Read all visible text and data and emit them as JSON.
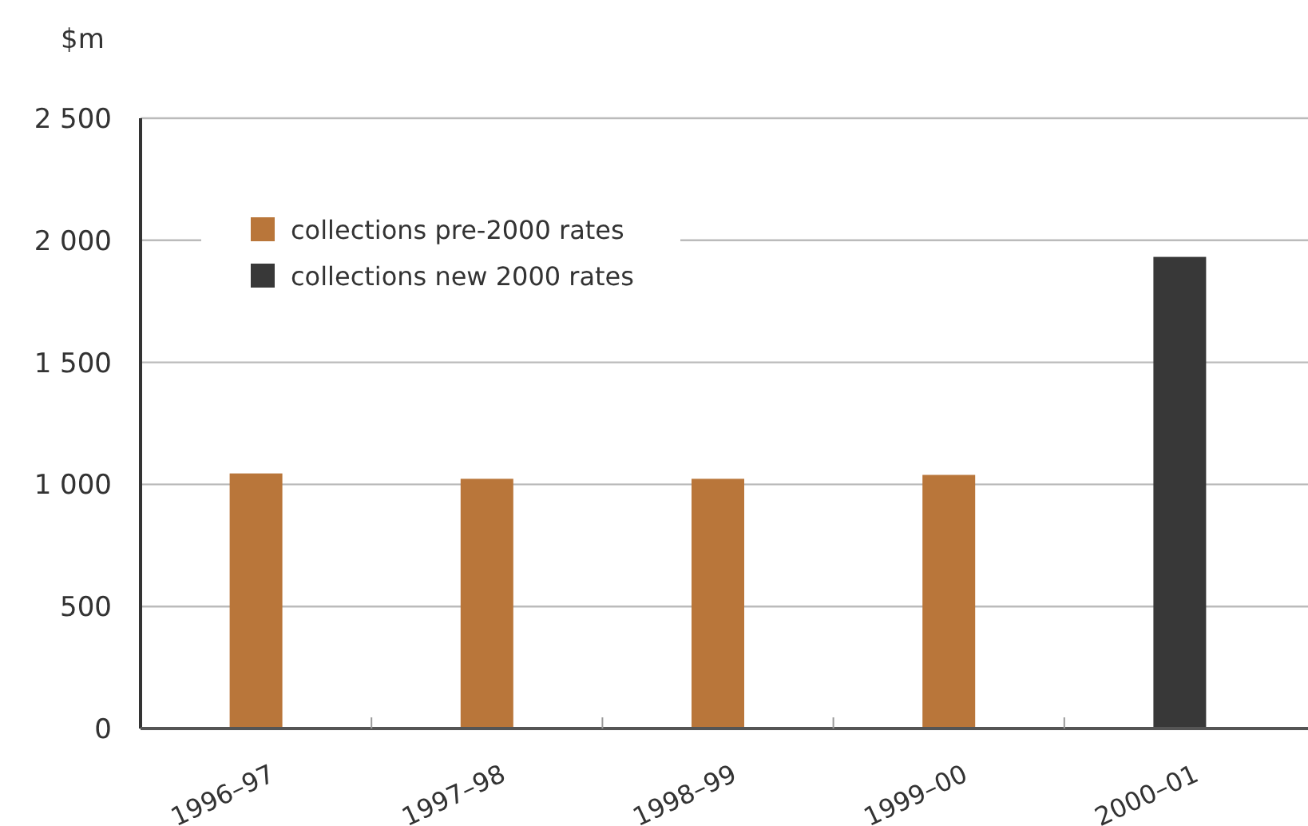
{
  "chart_data": {
    "type": "bar",
    "ylabel": "$m",
    "categories": [
      "1996–97",
      "1997–98",
      "1998–99",
      "1999–00",
      "2000–01"
    ],
    "series": [
      {
        "name": "collections pre-2000 rates",
        "color": "#b9763a",
        "values": [
          1045,
          1023,
          1023,
          1039,
          null
        ]
      },
      {
        "name": "collections new 2000 rates",
        "color": "#383838",
        "values": [
          null,
          null,
          null,
          null,
          1932
        ]
      }
    ],
    "ylim": [
      0,
      2500
    ],
    "yticks": [
      {
        "value": 0,
        "label": "0"
      },
      {
        "value": 500,
        "label": "500"
      },
      {
        "value": 1000,
        "label": "1 000"
      },
      {
        "value": 1500,
        "label": "1 500"
      },
      {
        "value": 2000,
        "label": "2 000"
      },
      {
        "value": 2500,
        "label": "2 500"
      }
    ],
    "grid": "y",
    "legend": "top left"
  }
}
